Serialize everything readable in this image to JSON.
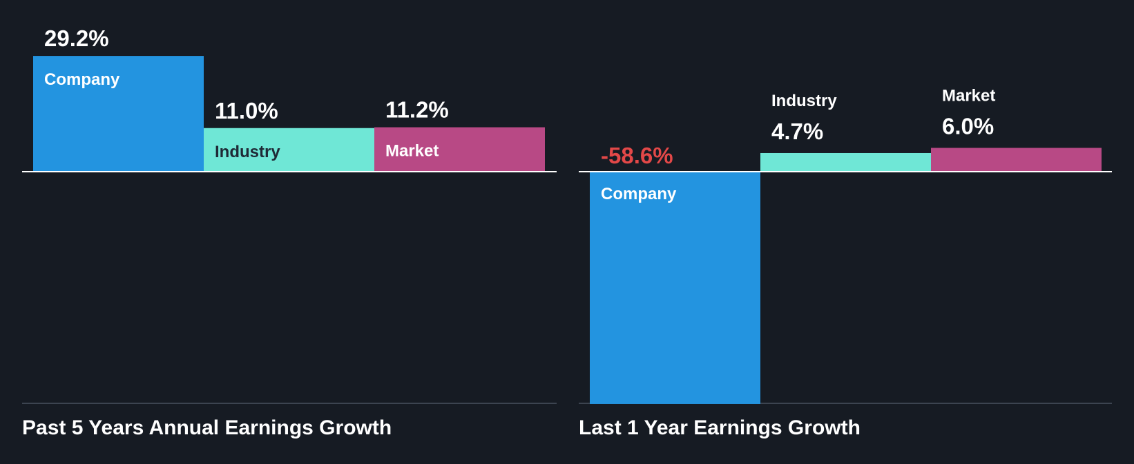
{
  "colors": {
    "background": "#161b23",
    "company": "#2394e0",
    "industry": "#6fe7d6",
    "market": "#b84985",
    "negative_value": "#e34848",
    "text": "#ffffff",
    "label_on_light": "#1f2a36",
    "baseline": "#ffffff",
    "bottom_rule": "#3c4450"
  },
  "chart_data": [
    {
      "type": "bar",
      "title": "Past 5 Years Annual Earnings Growth",
      "categories": [
        "Company",
        "Industry",
        "Market"
      ],
      "values": [
        29.2,
        11.0,
        11.2
      ],
      "value_labels": [
        "29.2%",
        "11.0%",
        "11.2%"
      ],
      "unit": "%",
      "ylim": [
        -60,
        30
      ],
      "grid": false,
      "legend": "none"
    },
    {
      "type": "bar",
      "title": "Last 1 Year Earnings Growth",
      "categories": [
        "Company",
        "Industry",
        "Market"
      ],
      "values": [
        -58.6,
        4.7,
        6.0
      ],
      "value_labels": [
        "-58.6%",
        "4.7%",
        "6.0%"
      ],
      "unit": "%",
      "ylim": [
        -60,
        30
      ],
      "grid": false,
      "legend": "none"
    }
  ]
}
